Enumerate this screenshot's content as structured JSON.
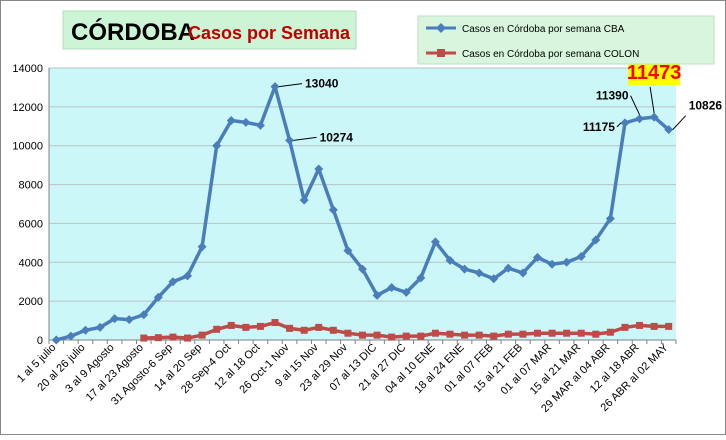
{
  "chart_data": {
    "type": "line",
    "title": "CÓRDOBA",
    "subtitle": "Casos por Semana",
    "xlabel": "",
    "ylabel": "",
    "ylim": [
      0,
      14000
    ],
    "yticks": [
      0,
      2000,
      4000,
      6000,
      8000,
      10000,
      12000,
      14000
    ],
    "grid": true,
    "legend_position": "top-right",
    "colors": {
      "plot_bg": "#ccf7f9",
      "title_box_bg": "#ccf5d6",
      "legend_bg": "#d7f6dd",
      "title_color": "#000000",
      "subtitle_color": "#c00000",
      "highlight_bg": "#ffff00",
      "highlight_text": "#ff0000",
      "gridline": "#b7c3c6",
      "axis": "#808080"
    },
    "x": [
      "1 al 5 julio",
      "",
      "20 al 26 julio",
      "",
      "3 al 9 Agosto",
      "",
      "17 al 23 Agosto",
      "",
      "31 Agosto-6 Sep",
      "",
      "14 al 20 Sep",
      "",
      "28 Sep-4 Oct",
      "",
      "12 al 18 Oct",
      "",
      "26 Oct-1 Nov",
      "",
      "9 al 15 Nov",
      "",
      "23 al 29 Nov",
      "",
      "07 al 13 DIC",
      "",
      "21 al 27 DIC",
      "",
      "04 al 10 ENE",
      "",
      "18 al 24 ENE",
      "",
      "01 al 07 FEB",
      "",
      "15 al 21 FEB",
      "",
      "01 al 07 MAR",
      "",
      "15 al 21 MAR",
      "",
      "29 MAR al 04 ABR",
      "",
      "12 al 18 ABR",
      "",
      "26 ABR al 02 MAY"
    ],
    "series": [
      {
        "name": "Casos en Córdoba por semana  CBA",
        "color": "#4a7ebb",
        "marker": "diamond",
        "values": [
          0,
          200,
          500,
          650,
          1100,
          1050,
          1300,
          2200,
          3000,
          3300,
          4800,
          10000,
          11300,
          11200,
          11050,
          13040,
          10274,
          7200,
          8800,
          6700,
          4600,
          3650,
          2300,
          2700,
          2450,
          3200,
          5050,
          4100,
          3650,
          3450,
          3150,
          3700,
          3450,
          4250,
          3900,
          4000,
          4300,
          5150,
          6250,
          11175,
          11390,
          11473,
          10826
        ]
      },
      {
        "name": "Casos en Córdoba por semana  COLON",
        "color": "#be4b48",
        "marker": "square",
        "values": [
          null,
          null,
          null,
          null,
          null,
          null,
          100,
          120,
          150,
          100,
          250,
          550,
          750,
          650,
          700,
          900,
          600,
          500,
          650,
          500,
          350,
          250,
          250,
          150,
          200,
          200,
          350,
          300,
          250,
          250,
          200,
          300,
          300,
          350,
          350,
          350,
          350,
          300,
          400,
          650,
          750,
          700,
          700
        ]
      }
    ],
    "annotations": [
      {
        "index": 15,
        "series": 0,
        "label": "13040",
        "side": "right"
      },
      {
        "index": 16,
        "series": 0,
        "label": "10274",
        "side": "right"
      },
      {
        "index": 39,
        "series": 0,
        "label": "11175",
        "side": "left"
      },
      {
        "index": 40,
        "series": 0,
        "label": "11390",
        "side": "up-left"
      },
      {
        "index": 41,
        "series": 0,
        "label": "11473",
        "side": "up",
        "highlight": true
      },
      {
        "index": 42,
        "series": 0,
        "label": "10826",
        "side": "right"
      }
    ]
  }
}
